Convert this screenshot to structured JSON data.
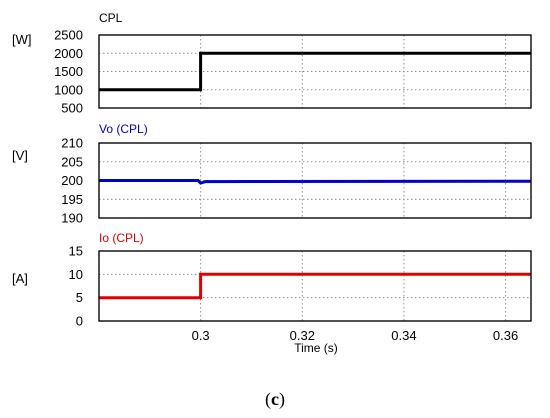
{
  "chart_data": [
    {
      "type": "line",
      "title": "CPL",
      "unit": "[W]",
      "ylim": [
        500,
        2500
      ],
      "yticks": [
        "500",
        "1000",
        "1500",
        "2000",
        "2500"
      ],
      "xlim": [
        0.28,
        0.365
      ],
      "series": [
        {
          "name": "CPL",
          "color": "#000000",
          "x": [
            0.28,
            0.2995,
            0.2995,
            0.3,
            0.3,
            0.365
          ],
          "y": [
            1000,
            1000,
            1000,
            1000,
            2000,
            2000
          ]
        }
      ],
      "grid": true
    },
    {
      "type": "line",
      "title": "Vo (CPL)",
      "unit": "[V]",
      "ylim": [
        190,
        210
      ],
      "yticks": [
        "190",
        "195",
        "200",
        "205",
        "210"
      ],
      "xlim": [
        0.28,
        0.365
      ],
      "series": [
        {
          "name": "Vo (CPL)",
          "color": "#0000cc",
          "x": [
            0.28,
            0.2995,
            0.3,
            0.301,
            0.365
          ],
          "y": [
            200,
            200,
            199.3,
            199.7,
            199.8
          ]
        }
      ],
      "grid": true
    },
    {
      "type": "line",
      "title": "Io (CPL)",
      "unit": "[A]",
      "ylim": [
        0,
        15
      ],
      "yticks": [
        "0",
        "5",
        "10",
        "15"
      ],
      "xlim": [
        0.28,
        0.365
      ],
      "series": [
        {
          "name": "Io (CPL)",
          "color": "#e00000",
          "x": [
            0.28,
            0.3,
            0.3,
            0.365
          ],
          "y": [
            5,
            5,
            10,
            10
          ]
        }
      ],
      "xticks": [
        "0.3",
        "0.32",
        "0.34",
        "0.36"
      ],
      "xlabel": "Time (s)",
      "grid": true
    }
  ],
  "caption": {
    "open": "(",
    "letter": "c",
    "close": ")"
  }
}
